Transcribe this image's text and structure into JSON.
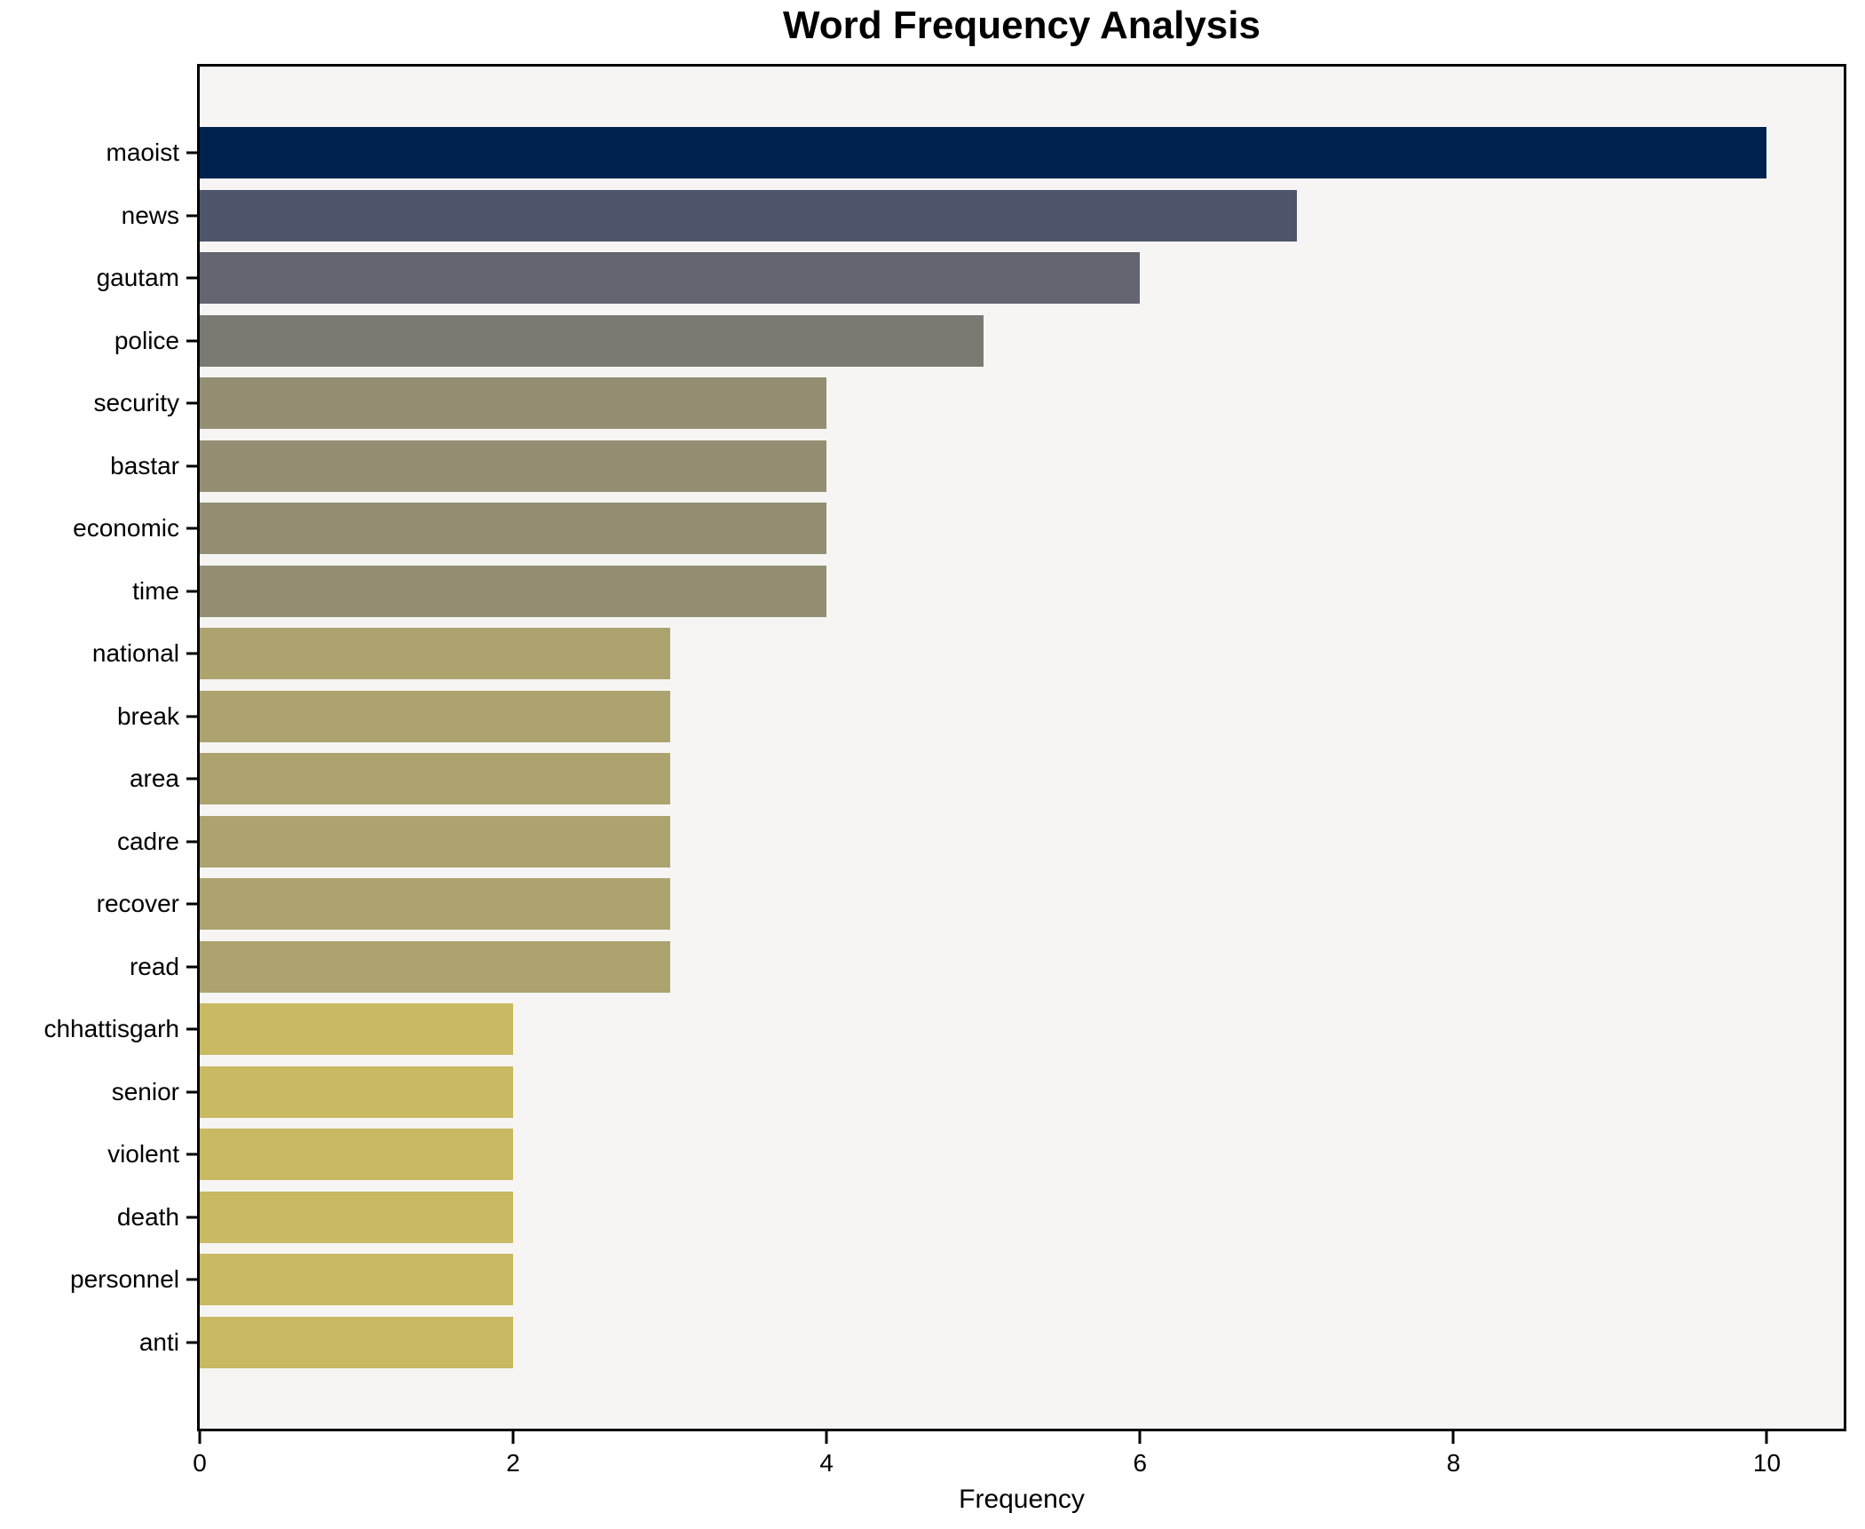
{
  "title": "Word Frequency Analysis",
  "chart_data": {
    "type": "bar",
    "orientation": "horizontal",
    "title": "Word Frequency Analysis",
    "xlabel": "Frequency",
    "ylabel": "",
    "categories": [
      "maoist",
      "news",
      "gautam",
      "police",
      "security",
      "bastar",
      "economic",
      "time",
      "national",
      "break",
      "area",
      "cadre",
      "recover",
      "read",
      "chhattisgarh",
      "senior",
      "violent",
      "death",
      "personnel",
      "anti"
    ],
    "values": [
      10,
      7,
      6,
      5,
      4,
      4,
      4,
      4,
      3,
      3,
      3,
      3,
      3,
      3,
      2,
      2,
      2,
      2,
      2,
      2
    ],
    "bar_colors": [
      "#00224e",
      "#4d566c",
      "#63666f",
      "#7a7a73",
      "#948f73",
      "#948f73",
      "#948f73",
      "#948f73",
      "#aca36f",
      "#aca36f",
      "#aca36f",
      "#aca36f",
      "#aca36f",
      "#aca36f",
      "#c8b962",
      "#c8b962",
      "#c8b962",
      "#c8b962",
      "#c8b962",
      "#c8b962"
    ],
    "xlim": [
      0,
      10.49
    ],
    "xticks": [
      0,
      2,
      4,
      6,
      8,
      10
    ],
    "grid": false,
    "legend": null,
    "plot_bg": "#f6f5f3",
    "figure_bg": "#ffffff",
    "spine_color": "#000000",
    "bar_height_ratio": 0.82
  }
}
